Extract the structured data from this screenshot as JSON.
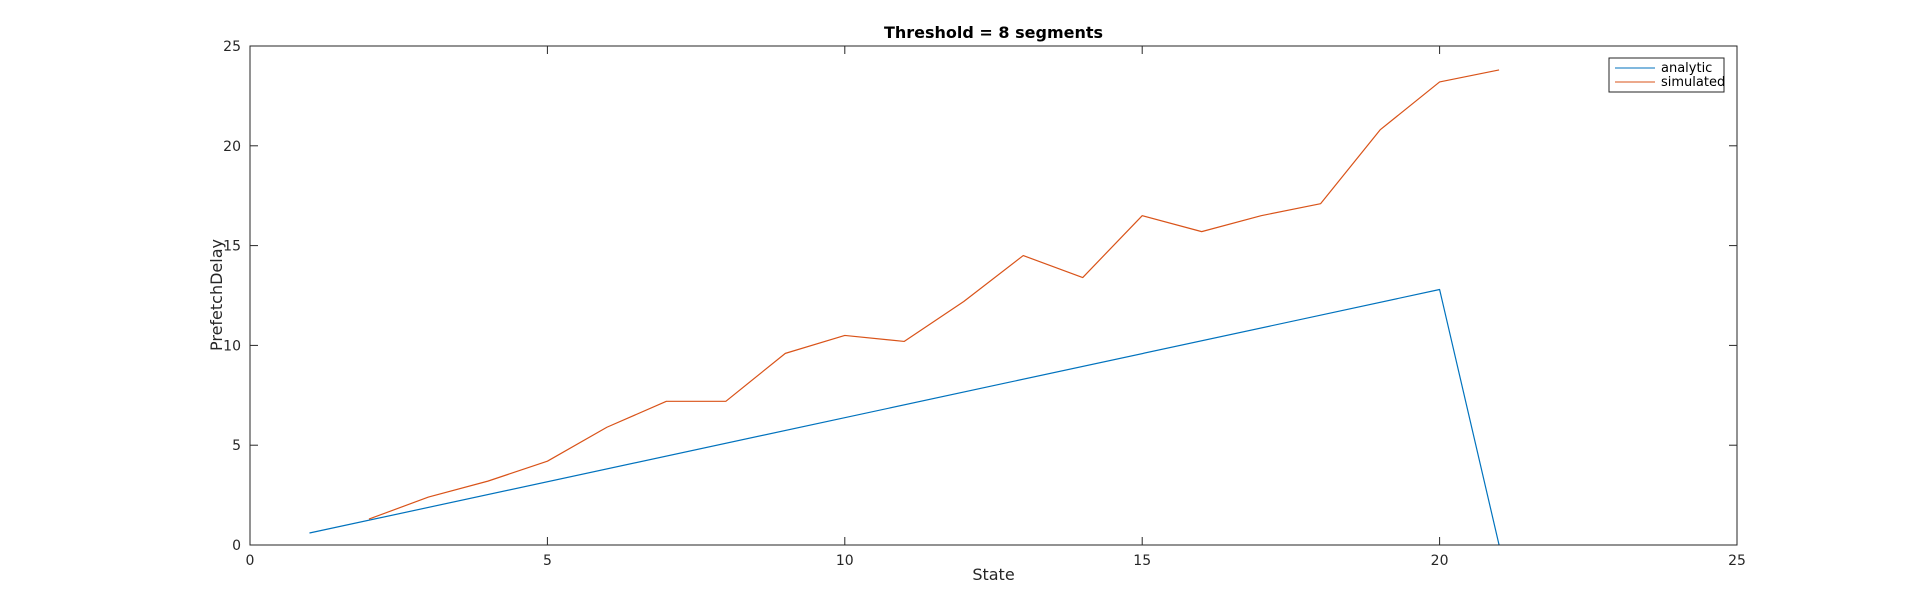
{
  "chart_data": {
    "type": "line",
    "title": "Threshold = 8 segments",
    "xlabel": "State",
    "ylabel": "PrefetchDelay",
    "xlim": [
      0,
      25
    ],
    "ylim": [
      0,
      25
    ],
    "xticks": [
      0,
      5,
      10,
      15,
      20,
      25
    ],
    "yticks": [
      0,
      5,
      10,
      15,
      20,
      25
    ],
    "grid": false,
    "legend_position": "top-right",
    "series": [
      {
        "name": "analytic",
        "color": "#0072BD",
        "x": [
          1,
          20,
          21
        ],
        "y": [
          0.6,
          12.8,
          0
        ]
      },
      {
        "name": "simulated",
        "color": "#D95319",
        "x": [
          2,
          3,
          4,
          5,
          6,
          7,
          8,
          9,
          10,
          11,
          12,
          13,
          14,
          15,
          16,
          17,
          18,
          19,
          20,
          21
        ],
        "y": [
          1.3,
          2.4,
          3.2,
          4.2,
          5.9,
          7.2,
          7.2,
          9.6,
          10.5,
          10.2,
          12.2,
          14.5,
          13.4,
          16.5,
          15.7,
          16.5,
          17.1,
          20.8,
          23.2,
          23.8
        ]
      }
    ]
  }
}
